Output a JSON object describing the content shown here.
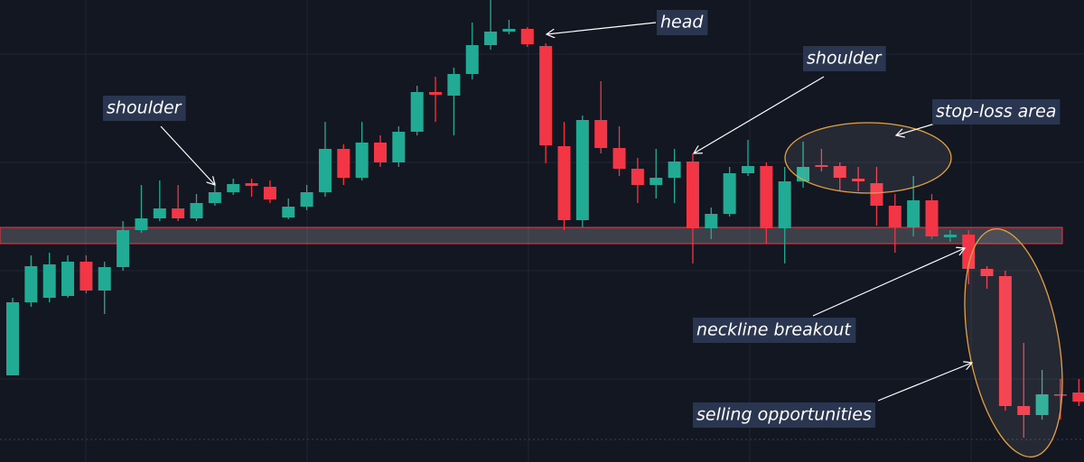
{
  "chart_data": {
    "type": "candlestick",
    "up_color": "#22ab94",
    "down_color": "#f23645",
    "ylim": [
      0,
      512
    ],
    "open": [
      96,
      177,
      182,
      184,
      222,
      190,
      216,
      257,
      270,
      281,
      270,
      287,
      299,
      309,
      305,
      271,
      283,
      299,
      347,
      315,
      354,
      332,
      366,
      410,
      406,
      430,
      462,
      477,
      480,
      461,
      350,
      268,
      379,
      348,
      325,
      307,
      315,
      333,
      259,
      275,
      320,
      328,
      259,
      311,
      329,
      328,
      314,
      309,
      284,
      260,
      290,
      249,
      252,
      214,
      206,
      62,
      52,
      75,
      77
    ],
    "high": [
      182,
      229,
      232,
      229,
      229,
      222,
      267,
      307,
      312,
      307,
      297,
      310,
      314,
      314,
      312,
      292,
      307,
      377,
      352,
      377,
      362,
      372,
      417,
      427,
      437,
      487,
      512,
      490,
      482,
      464,
      377,
      384,
      422,
      372,
      337,
      347,
      347,
      342,
      282,
      327,
      357,
      332,
      327,
      355,
      347,
      332,
      327,
      327,
      297,
      317,
      297,
      257,
      257,
      217,
      212,
      132,
      102,
      92,
      92
    ],
    "low": [
      96,
      172,
      177,
      182,
      187,
      164,
      212,
      254,
      267,
      267,
      267,
      284,
      296,
      294,
      287,
      269,
      279,
      294,
      307,
      312,
      327,
      327,
      362,
      377,
      362,
      424,
      457,
      474,
      460,
      331,
      257,
      260,
      342,
      317,
      287,
      292,
      287,
      220,
      247,
      272,
      317,
      242,
      220,
      304,
      322,
      300,
      300,
      262,
      232,
      250,
      247,
      244,
      197,
      192,
      57,
      27,
      47,
      47,
      62
    ],
    "close": [
      177,
      217,
      219,
      222,
      190,
      216,
      257,
      270,
      281,
      270,
      287,
      299,
      308,
      306,
      291,
      283,
      299,
      347,
      315,
      354,
      332,
      366,
      410,
      407,
      430,
      462,
      477,
      480,
      463,
      351,
      268,
      379,
      348,
      325,
      307,
      315,
      333,
      259,
      275,
      320,
      328,
      259,
      311,
      327,
      327,
      315,
      311,
      284,
      260,
      290,
      250,
      252,
      214,
      206,
      62,
      52,
      75,
      74,
      67
    ],
    "neckline": {
      "low": 242,
      "high": 260
    },
    "annotations": [
      "shoulder",
      "head",
      "shoulder",
      "stop-loss area",
      "neckline breakout",
      "selling opportunities"
    ]
  }
}
